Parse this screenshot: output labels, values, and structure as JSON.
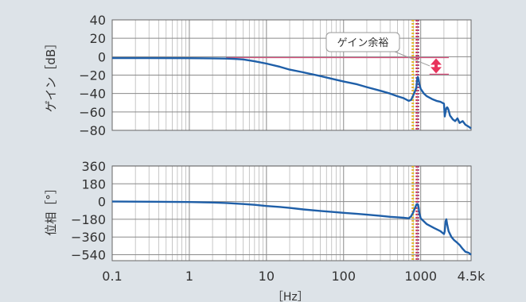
{
  "chart_data": [
    {
      "type": "line",
      "ylabel": "ゲイン［dB］",
      "xscale": "log",
      "xlim": [
        0.1,
        4500
      ],
      "ylim": [
        -80,
        40
      ],
      "yticks": [
        40,
        20,
        0,
        -20,
        -40,
        -60,
        -80
      ],
      "ytick_labels": [
        "40",
        "20",
        "0",
        "−20",
        "−40",
        "−60",
        "−80"
      ],
      "grid": true,
      "series": [
        {
          "color": "#1f5fa8",
          "x": [
            0.1,
            0.3,
            1,
            2,
            3,
            4,
            5,
            7,
            10,
            15,
            20,
            30,
            50,
            70,
            100,
            150,
            200,
            300,
            400,
            500,
            600,
            700,
            750,
            800,
            850,
            880,
            900,
            920,
            940,
            960,
            1000,
            1100,
            1200,
            1400,
            1600,
            1800,
            2000,
            2050,
            2100,
            2150,
            2200,
            2250,
            2300,
            2400,
            2500,
            2600,
            2800,
            3000,
            3200,
            3500,
            3800,
            4200,
            4500
          ],
          "y": [
            -1.5,
            -1.5,
            -1.6,
            -1.8,
            -2,
            -2.5,
            -3,
            -5,
            -7.5,
            -11,
            -14,
            -17,
            -21,
            -24,
            -27,
            -30,
            -33,
            -37,
            -40,
            -43,
            -45,
            -48,
            -47,
            -42,
            -37,
            -33,
            -23,
            -22,
            -25,
            -30,
            -35,
            -40,
            -43,
            -46,
            -48,
            -49,
            -51,
            -65,
            -60,
            -56,
            -55,
            -56,
            -58,
            -64,
            -66,
            -68,
            -70,
            -67,
            -72,
            -70,
            -74,
            -76,
            -78
          ]
        }
      ],
      "annotations": [
        {
          "text": "ゲイン余裕"
        }
      ],
      "reference_line_y": -1,
      "reference_line_y2": -19,
      "vlines": [
        {
          "x": 780,
          "color": "#e8a33c"
        },
        {
          "x": 800,
          "color": "#e0c020"
        },
        {
          "x": 880,
          "color": "#d02a4a"
        },
        {
          "x": 930,
          "color": "#a0306a"
        }
      ]
    },
    {
      "type": "line",
      "ylabel": "位相［°］",
      "xscale": "log",
      "xlabel": "［Hz］",
      "xlim": [
        0.1,
        4500
      ],
      "ylim": [
        -600,
        440
      ],
      "yticks": [
        360,
        180,
        0,
        -180,
        -360,
        -540
      ],
      "ytick_labels": [
        "360",
        "180",
        "0",
        "−180",
        "−360",
        "−540"
      ],
      "xticks": [
        0.1,
        1,
        10,
        100,
        1000,
        4500
      ],
      "xtick_labels": [
        "0.1",
        "1",
        "10",
        "100",
        "1000",
        "4.5k"
      ],
      "grid": true,
      "series": [
        {
          "color": "#1f5fa8",
          "x": [
            0.1,
            0.3,
            1,
            2,
            3,
            5,
            7,
            10,
            15,
            20,
            30,
            50,
            70,
            100,
            150,
            200,
            300,
            400,
            500,
            600,
            700,
            750,
            800,
            850,
            880,
            900,
            920,
            940,
            960,
            1000,
            1200,
            1500,
            1800,
            2000,
            2050,
            2100,
            2150,
            2200,
            2300,
            2500,
            2700,
            3000,
            3200,
            3500,
            3800,
            4200,
            4500
          ],
          "y": [
            0,
            -2,
            -5,
            -10,
            -15,
            -25,
            -33,
            -45,
            -55,
            -65,
            -80,
            -95,
            -105,
            -115,
            -125,
            -133,
            -145,
            -155,
            -160,
            -165,
            -170,
            -150,
            -110,
            -60,
            -30,
            -25,
            -30,
            -60,
            -120,
            -170,
            -230,
            -270,
            -300,
            -330,
            -300,
            -200,
            -180,
            -230,
            -300,
            -360,
            -390,
            -420,
            -440,
            -480,
            -510,
            -520,
            -540
          ]
        }
      ],
      "vlines": [
        {
          "x": 780,
          "color": "#e8a33c"
        },
        {
          "x": 800,
          "color": "#e0c020"
        },
        {
          "x": 880,
          "color": "#d02a4a"
        },
        {
          "x": 930,
          "color": "#a0306a"
        }
      ]
    }
  ]
}
